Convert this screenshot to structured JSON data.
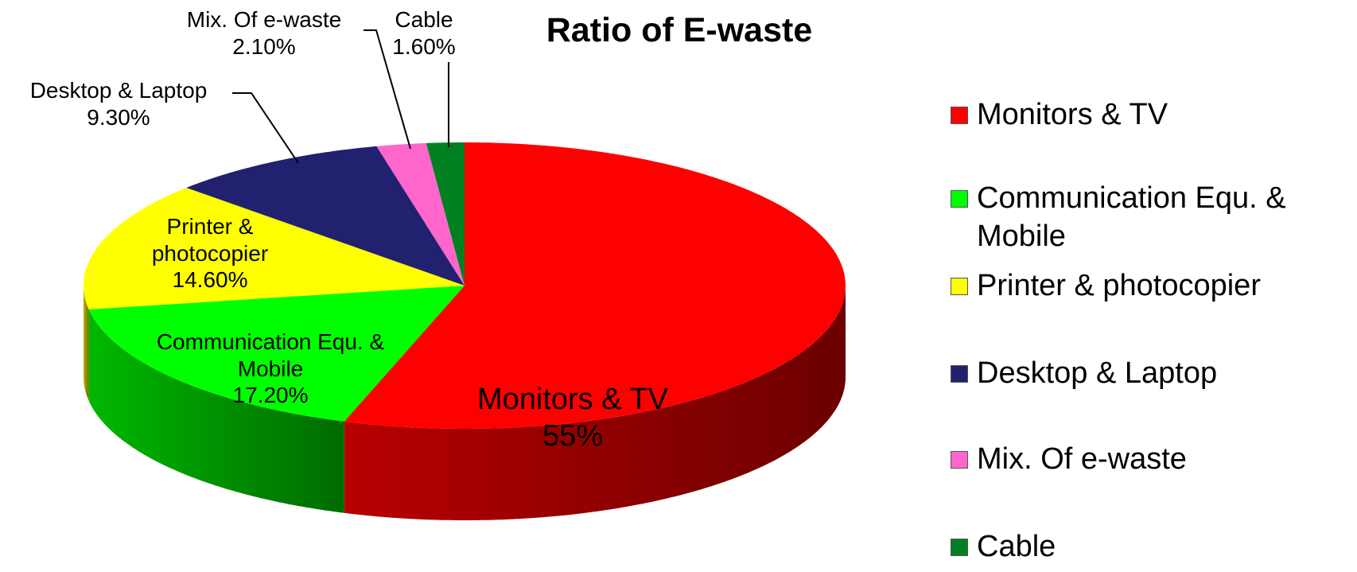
{
  "chart_data": {
    "type": "pie",
    "title": "Ratio of E-waste",
    "categories": [
      "Monitors & TV",
      "Communication Equ. & Mobile",
      "Printer & photocopier",
      "Desktop & Laptop",
      "Mix. Of e-waste",
      "Cable"
    ],
    "values": [
      55,
      17.2,
      14.6,
      9.3,
      2.1,
      1.6
    ],
    "value_labels": [
      "55%",
      "17.20%",
      "14.60%",
      "9.30%",
      "2.10%",
      "1.60%"
    ],
    "colors": [
      "#ff0000",
      "#00ff00",
      "#ffff00",
      "#212170",
      "#ff66cc",
      "#008020"
    ],
    "legend": "right"
  }
}
